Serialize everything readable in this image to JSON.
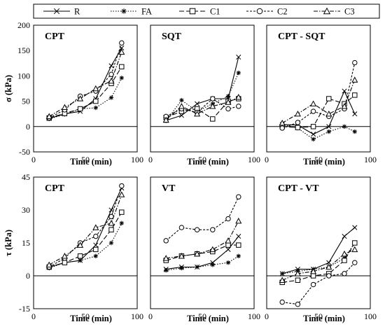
{
  "legend": [
    {
      "name": "R",
      "marker": "x",
      "dash": "solid"
    },
    {
      "name": "FA",
      "marker": "star",
      "dash": "dotted"
    },
    {
      "name": "C1",
      "marker": "square",
      "dash": "longdash"
    },
    {
      "name": "C2",
      "marker": "circle",
      "dash": "shortdash"
    },
    {
      "name": "C3",
      "marker": "triangle",
      "dash": "dashdot"
    }
  ],
  "colors": {
    "lines": "#000000",
    "frame": "#000000",
    "background": "#ffffff"
  },
  "chart_data": [
    {
      "type": "line",
      "title": "CPT",
      "xlabel": "Time (min)",
      "ylabel": "σ (kPa)",
      "xlim": [
        0,
        100
      ],
      "ylim": [
        -50,
        200
      ],
      "xticks": [
        "0",
        "50",
        "100"
      ],
      "yticks": [
        "-50",
        "0",
        "50",
        "100",
        "150",
        "200"
      ],
      "series": [
        {
          "name": "R",
          "x": [
            15,
            30,
            45,
            60,
            75,
            85
          ],
          "y": [
            16,
            25,
            30,
            55,
            120,
            155
          ]
        },
        {
          "name": "FA",
          "x": [
            15,
            30,
            45,
            60,
            75,
            85
          ],
          "y": [
            15,
            24,
            35,
            37,
            57,
            96
          ]
        },
        {
          "name": "C1",
          "x": [
            15,
            30,
            45,
            60,
            75,
            85
          ],
          "y": [
            17,
            26,
            35,
            50,
            85,
            118
          ]
        },
        {
          "name": "C2",
          "x": [
            15,
            30,
            45,
            60,
            75,
            85
          ],
          "y": [
            17,
            33,
            60,
            70,
            103,
            165
          ]
        },
        {
          "name": "C3",
          "x": [
            15,
            30,
            45,
            60,
            75,
            85
          ],
          "y": [
            20,
            38,
            55,
            75,
            90,
            147
          ]
        }
      ]
    },
    {
      "type": "line",
      "title": "SQT",
      "xlabel": "Time (min)",
      "ylabel": "",
      "xlim": [
        0,
        100
      ],
      "ylim": [
        -50,
        200
      ],
      "xticks": [
        "0",
        "50",
        "100"
      ],
      "yticks": [],
      "series": [
        {
          "name": "R",
          "x": [
            15,
            30,
            45,
            60,
            75,
            85
          ],
          "y": [
            12,
            22,
            45,
            55,
            55,
            137
          ]
        },
        {
          "name": "FA",
          "x": [
            15,
            30,
            45,
            60,
            75,
            85
          ],
          "y": [
            11,
            52,
            30,
            45,
            60,
            106
          ]
        },
        {
          "name": "C1",
          "x": [
            15,
            30,
            45,
            60,
            75,
            85
          ],
          "y": [
            18,
            30,
            35,
            15,
            50,
            55
          ]
        },
        {
          "name": "C2",
          "x": [
            15,
            30,
            45,
            60,
            75,
            85
          ],
          "y": [
            20,
            35,
            28,
            55,
            35,
            40
          ]
        },
        {
          "name": "C3",
          "x": [
            15,
            30,
            45,
            60,
            75,
            85
          ],
          "y": [
            13,
            40,
            25,
            40,
            48,
            58
          ]
        }
      ]
    },
    {
      "type": "line",
      "title": "CPT - SQT",
      "xlabel": "Time (min)",
      "ylabel": "",
      "xlim": [
        0,
        100
      ],
      "ylim": [
        -50,
        200
      ],
      "xticks": [
        "0",
        "50",
        "100"
      ],
      "yticks": [],
      "series": [
        {
          "name": "R",
          "x": [
            15,
            30,
            45,
            60,
            75,
            85
          ],
          "y": [
            4,
            3,
            -15,
            0,
            70,
            25
          ]
        },
        {
          "name": "FA",
          "x": [
            15,
            30,
            45,
            60,
            75,
            85
          ],
          "y": [
            4,
            -3,
            -25,
            -10,
            0,
            -10
          ]
        },
        {
          "name": "C1",
          "x": [
            15,
            30,
            45,
            60,
            75,
            85
          ],
          "y": [
            0,
            -2,
            0,
            55,
            45,
            62
          ]
        },
        {
          "name": "C2",
          "x": [
            15,
            30,
            45,
            60,
            75,
            85
          ],
          "y": [
            -3,
            8,
            30,
            20,
            35,
            126
          ]
        },
        {
          "name": "C3",
          "x": [
            15,
            30,
            45,
            60,
            75,
            85
          ],
          "y": [
            7,
            25,
            45,
            25,
            40,
            92
          ]
        }
      ]
    },
    {
      "type": "line",
      "title": "CPT",
      "xlabel": "Time (min)",
      "ylabel": "τ (kPa)",
      "xlim": [
        0,
        100
      ],
      "ylim": [
        -15,
        45
      ],
      "xticks": [
        "0",
        "50",
        "100"
      ],
      "yticks": [
        "-15",
        "0",
        "15",
        "30",
        "45"
      ],
      "series": [
        {
          "name": "R",
          "x": [
            15,
            30,
            45,
            60,
            75,
            85
          ],
          "y": [
            4,
            6,
            7,
            14,
            30,
            40
          ]
        },
        {
          "name": "FA",
          "x": [
            15,
            30,
            45,
            60,
            75,
            85
          ],
          "y": [
            3.5,
            6,
            7,
            9,
            15,
            24
          ]
        },
        {
          "name": "C1",
          "x": [
            15,
            30,
            45,
            60,
            75,
            85
          ],
          "y": [
            4,
            6,
            9,
            12,
            21,
            29
          ]
        },
        {
          "name": "C2",
          "x": [
            15,
            30,
            45,
            60,
            75,
            85
          ],
          "y": [
            4,
            8,
            15,
            18,
            27,
            41
          ]
        },
        {
          "name": "C3",
          "x": [
            15,
            30,
            45,
            60,
            75,
            85
          ],
          "y": [
            5,
            9,
            14,
            22,
            24,
            37
          ]
        }
      ]
    },
    {
      "type": "line",
      "title": "VT",
      "xlabel": "Time (min)",
      "ylabel": "",
      "xlim": [
        0,
        100
      ],
      "ylim": [
        -15,
        45
      ],
      "xticks": [
        "0",
        "50",
        "100"
      ],
      "yticks": [],
      "series": [
        {
          "name": "R",
          "x": [
            15,
            30,
            45,
            60,
            75,
            85
          ],
          "y": [
            3,
            4,
            4,
            6,
            12,
            18
          ]
        },
        {
          "name": "FA",
          "x": [
            15,
            30,
            45,
            60,
            75,
            85
          ],
          "y": [
            2.5,
            3.5,
            4,
            5,
            6,
            9
          ]
        },
        {
          "name": "C1",
          "x": [
            15,
            30,
            45,
            60,
            75,
            85
          ],
          "y": [
            7,
            9,
            10,
            11,
            14,
            14
          ]
        },
        {
          "name": "C2",
          "x": [
            15,
            30,
            45,
            60,
            75,
            85
          ],
          "y": [
            16,
            22,
            21,
            21,
            26,
            36
          ]
        },
        {
          "name": "C3",
          "x": [
            15,
            30,
            45,
            60,
            75,
            85
          ],
          "y": [
            8,
            9,
            10,
            12,
            16,
            25
          ]
        }
      ]
    },
    {
      "type": "line",
      "title": "CPT - VT",
      "xlabel": "Time (min)",
      "ylabel": "",
      "xlim": [
        0,
        100
      ],
      "ylim": [
        -15,
        45
      ],
      "xticks": [
        "0",
        "50",
        "100"
      ],
      "yticks": [],
      "series": [
        {
          "name": "R",
          "x": [
            15,
            30,
            45,
            60,
            75,
            85
          ],
          "y": [
            1,
            3,
            3,
            6,
            18,
            22
          ]
        },
        {
          "name": "FA",
          "x": [
            15,
            30,
            45,
            60,
            75,
            85
          ],
          "y": [
            1,
            2,
            3,
            4,
            8,
            15
          ]
        },
        {
          "name": "C1",
          "x": [
            15,
            30,
            45,
            60,
            75,
            85
          ],
          "y": [
            -3,
            -2,
            0,
            1,
            7,
            15
          ]
        },
        {
          "name": "C2",
          "x": [
            15,
            30,
            45,
            60,
            75,
            85
          ],
          "y": [
            -12,
            -13,
            -4,
            0,
            1,
            6
          ]
        },
        {
          "name": "C3",
          "x": [
            15,
            30,
            45,
            60,
            75,
            85
          ],
          "y": [
            -2,
            1,
            2,
            4,
            10,
            12
          ]
        }
      ]
    }
  ]
}
